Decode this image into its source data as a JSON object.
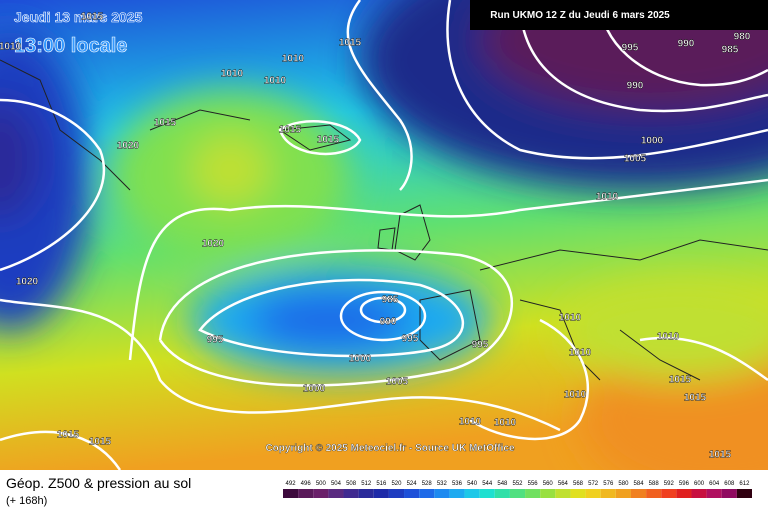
{
  "header": {
    "date": "Jeudi 13 mars 2025",
    "time": "13:00 locale",
    "run": "Run UKMO 12 Z du Jeudi 6 mars 2025"
  },
  "copyright": "Copyright © 2025 Meteociel.fr - Source UK MetOffice",
  "footer": {
    "title": "Géop. Z500 & pression au sol",
    "lead": "(+ 168h)"
  },
  "isobar_labels": [
    1015,
    1010,
    1015,
    1010,
    1010,
    1010,
    1015,
    1015,
    1020,
    1015,
    1020,
    1020,
    985,
    990,
    995,
    995,
    995,
    1000,
    1000,
    1005,
    1010,
    1010,
    1010,
    1010,
    1010,
    1015,
    1015,
    1015,
    1010,
    1015,
    1015,
    995,
    990,
    985,
    980,
    990,
    1000,
    1005,
    1010
  ],
  "colorbar": {
    "ticks": [
      492,
      496,
      500,
      504,
      508,
      512,
      516,
      520,
      524,
      528,
      532,
      536,
      540,
      544,
      548,
      552,
      556,
      560,
      564,
      568,
      572,
      576,
      580,
      584,
      588,
      592,
      596,
      600,
      604,
      608,
      612
    ],
    "colors": [
      "#3d0a3d",
      "#5a1a5a",
      "#6a206a",
      "#5a2a80",
      "#402a90",
      "#2a2a9a",
      "#1e2aa8",
      "#1e3cc0",
      "#1e50d8",
      "#1e6ae8",
      "#1e8af0",
      "#1eaaf0",
      "#1ec8e8",
      "#1ee0d0",
      "#30e0a8",
      "#50e080",
      "#70e060",
      "#98e040",
      "#c0e030",
      "#e0e020",
      "#f0d020",
      "#f0b820",
      "#f0a020",
      "#f08020",
      "#f06020",
      "#f04020",
      "#e02020",
      "#c81040",
      "#b01060",
      "#900a60",
      "#300010"
    ]
  }
}
